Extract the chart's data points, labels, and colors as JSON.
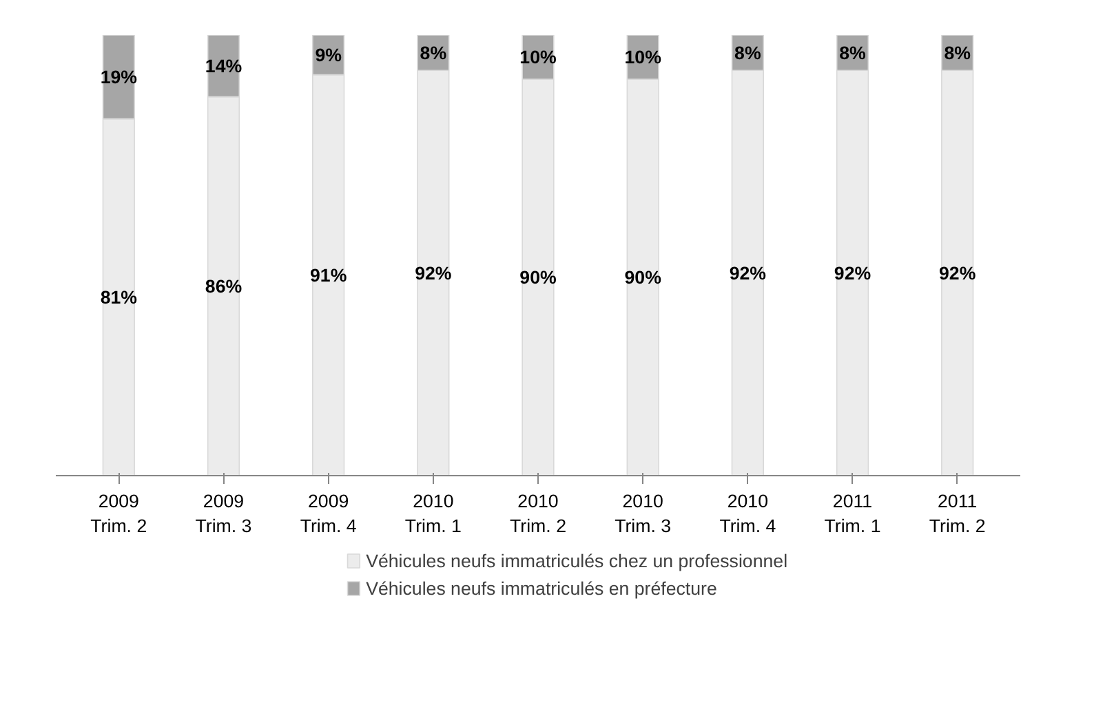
{
  "chart_data": {
    "type": "bar",
    "stacked": true,
    "categories": [
      "2009\nTrim. 2",
      "2009\nTrim. 3",
      "2009\nTrim. 4",
      "2010\nTrim. 1",
      "2010\nTrim. 2",
      "2010\nTrim. 3",
      "2010\nTrim. 4",
      "2011\nTrim. 1",
      "2011\nTrim. 2"
    ],
    "series": [
      {
        "name": "Véhicules neufs immatriculés chez un professionnel",
        "color": "#ececec",
        "values": [
          81,
          86,
          91,
          92,
          90,
          90,
          92,
          92,
          92
        ],
        "value_labels": [
          "81%",
          "86%",
          "91%",
          "92%",
          "90%",
          "90%",
          "92%",
          "92%",
          "92%"
        ]
      },
      {
        "name": "Véhicules neufs immatriculés en préfecture",
        "color": "#a6a6a6",
        "values": [
          19,
          14,
          9,
          8,
          10,
          10,
          8,
          8,
          8
        ],
        "value_labels": [
          "19%",
          "14%",
          "9%",
          "8%",
          "10%",
          "10%",
          "8%",
          "8%",
          "8%"
        ]
      }
    ],
    "legend": "bottom",
    "tick_labels": "x"
  }
}
